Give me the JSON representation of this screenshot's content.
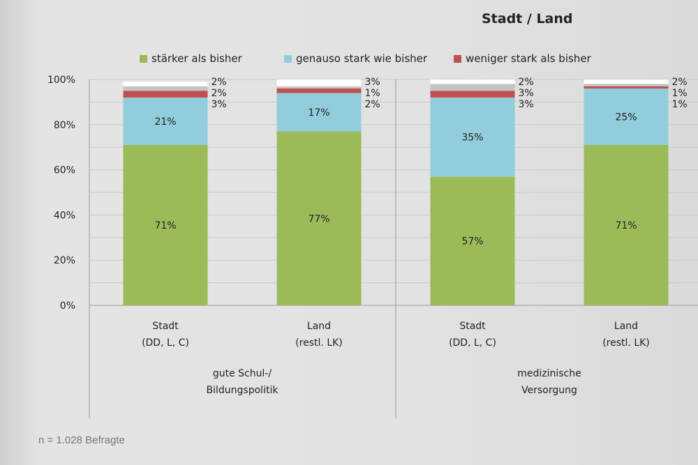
{
  "chart_data": {
    "type": "bar",
    "stacked": true,
    "title": "Stadt / Land",
    "groups": [
      "gute Schul-/\nBildungspolitik",
      "medizinische\nVersorgung"
    ],
    "categories": [
      "Stadt\n(DD, L, C)",
      "Land\n(restl. LK)",
      "Stadt\n(DD, L, C)",
      "Land\n(restl. LK)"
    ],
    "series": [
      {
        "name": "stärker als bisher",
        "color": "#9bbb59",
        "values": [
          71,
          77,
          57,
          71
        ]
      },
      {
        "name": "genauso stark wie bisher",
        "color": "#92cddc",
        "values": [
          21,
          17,
          35,
          25
        ]
      },
      {
        "name": "weniger stark als bisher",
        "color": "#c0504d",
        "values": [
          3,
          2,
          3,
          1
        ]
      },
      {
        "color": "#c4c4c4",
        "values": [
          2,
          1,
          3,
          1
        ]
      },
      {
        "color": "#ffffff",
        "values": [
          2,
          3,
          2,
          2
        ]
      }
    ],
    "yticks": [
      "0%",
      "20%",
      "40%",
      "60%",
      "80%",
      "100%"
    ],
    "ylim": [
      0,
      100
    ],
    "grid": true,
    "legend": "top",
    "note": "n = 1.028 Befragte"
  }
}
